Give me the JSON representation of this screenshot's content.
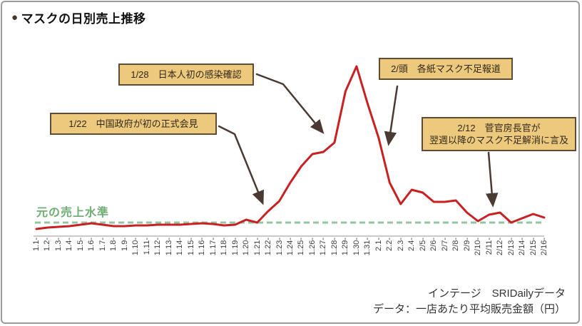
{
  "title": {
    "bullet": "●",
    "text": "マスクの日別売上推移"
  },
  "baseline_label": "元の売上水準",
  "footer": {
    "source": "インテージ　SRIDailyデータ",
    "note": "データ：一店あたり平均販売金額（円）"
  },
  "colors": {
    "line_red": "#c82121",
    "baseline_green_light": "#94c5a0",
    "baseline_green_dark": "#6fae74",
    "callout_fill": "#ecc97c",
    "callout_border": "#5d4d35",
    "arrow_brown": "#4a3a33"
  },
  "chart_data": {
    "type": "line",
    "title": "マスクの日別売上推移",
    "categories": [
      "1.1-",
      "1.2-",
      "1.3-",
      "1.4-",
      "1.5-",
      "1.6-",
      "1.7-",
      "1.8-",
      "1.9-",
      "1.10-",
      "1.11-",
      "1.12-",
      "1.13-",
      "1.14-",
      "1.15-",
      "1.16-",
      "1.17-",
      "1.18-",
      "1.19-",
      "1.20-",
      "1.21-",
      "1.22-",
      "1.23-",
      "1.24-",
      "1.25-",
      "1.26-",
      "1.27-",
      "1.28-",
      "1.29-",
      "1.30-",
      "1.31-",
      "2.1-",
      "2.2-",
      "2.3-",
      "2.4-",
      "2/5-",
      "2/6-",
      "2/7-",
      "2/8-",
      "2/9-",
      "2/10-",
      "2/11-",
      "2/12-",
      "2/13-",
      "2/14-",
      "2/15-",
      "2/16-"
    ],
    "series": [
      {
        "name": "一店あたり平均販売金額（円）",
        "values": [
          55,
          65,
          70,
          75,
          85,
          95,
          85,
          75,
          75,
          80,
          80,
          85,
          85,
          85,
          90,
          95,
          90,
          80,
          85,
          120,
          100,
          180,
          250,
          380,
          495,
          580,
          595,
          660,
          1020,
          1195,
          935,
          695,
          380,
          230,
          330,
          310,
          245,
          245,
          255,
          170,
          110,
          155,
          170,
          100,
          130,
          160,
          135
        ]
      }
    ],
    "baseline": {
      "label": "元の売上水準",
      "value": 100
    },
    "ylim": [
      0,
      1250
    ],
    "y_axis_visible": false,
    "legend": "none",
    "annotations": [
      {
        "label": "1/28　日本人初の感染確認",
        "points_to": "1.28"
      },
      {
        "label": "1/22　中国政府が初の正式会見",
        "points_to": "1.22"
      },
      {
        "label": "2/頭　各紙マスク不足報道",
        "points_to": "2.1"
      },
      {
        "label": "2/12　菅官房長官が\n翌週以降のマスク不足解消に言及",
        "points_to": "2/12"
      }
    ]
  }
}
